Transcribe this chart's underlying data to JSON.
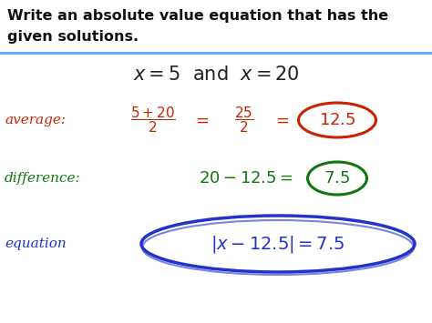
{
  "bg_color": "#ffffff",
  "header_text_line1": "Write an absolute value equation that has the",
  "header_text_line2": "given solutions.",
  "header_color": "#111111",
  "header_fontsize": 11.5,
  "divider_color": "#55aaff",
  "divider_lw": 2.0,
  "solutions_color": "#222222",
  "solutions_fontsize": 15,
  "average_label": "average:",
  "average_color": "#cc2200",
  "difference_label": "difference:",
  "difference_color": "#117711",
  "equation_label": "equation",
  "equation_color": "#2233cc",
  "fig_width": 4.74,
  "fig_height": 3.55,
  "dpi": 100
}
